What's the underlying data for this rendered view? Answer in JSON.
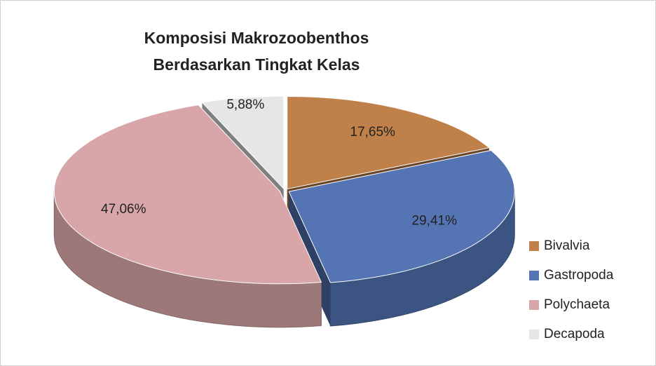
{
  "chart_data": {
    "type": "pie",
    "title": [
      "Komposisi Makrozoobenthos",
      "Berdasarkan  Tingkat Kelas"
    ],
    "categories": [
      "Bivalvia",
      "Gastropoda",
      "Polychaeta",
      "Decapoda"
    ],
    "values": [
      17.65,
      29.41,
      47.06,
      5.88
    ],
    "value_labels": [
      "17,65%",
      "29,41%",
      "47,06%",
      "5,88%"
    ],
    "colors": [
      "#c0804a",
      "#5474b4",
      "#d8a6a8",
      "#e6e6e6"
    ],
    "legend": "right"
  }
}
